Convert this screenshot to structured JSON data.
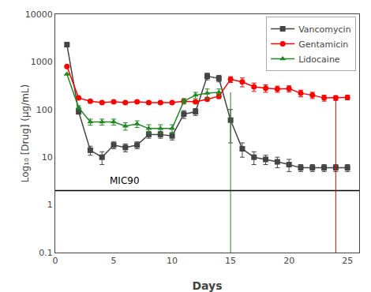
{
  "chart_data": {
    "type": "line",
    "xlabel": "Days",
    "ylabel": "Log₁₀ [Drug] (μg/mL)",
    "log": "y",
    "xlim": [
      0,
      26
    ],
    "ylim": [
      0.1,
      10000
    ],
    "xticks": [
      0,
      5,
      10,
      15,
      20,
      25
    ],
    "yticks": [
      0.1,
      1,
      10,
      100,
      1000,
      10000
    ],
    "grid": false,
    "legend": "upper right",
    "series": [
      {
        "name": "Vancomycin",
        "color": "#444444",
        "marker": "square",
        "x": [
          1,
          2,
          3,
          4,
          5,
          6,
          7,
          8,
          9,
          10,
          11,
          12,
          13,
          14,
          15,
          16,
          17,
          18,
          19,
          20,
          21,
          22,
          23,
          24,
          25
        ],
        "values": [
          2300,
          90,
          14,
          10,
          18,
          16,
          18,
          30,
          30,
          28,
          80,
          90,
          500,
          450,
          60,
          15,
          10,
          9,
          8,
          7,
          6,
          6,
          6,
          6,
          6
        ],
        "yerr_lo": [
          200,
          10,
          3,
          3,
          3,
          3,
          3,
          5,
          5,
          5,
          15,
          15,
          80,
          70,
          40,
          5,
          3,
          2,
          2,
          2,
          1,
          1,
          1,
          1,
          1
        ],
        "yerr_hi": [
          200,
          10,
          3,
          3,
          3,
          3,
          3,
          5,
          5,
          5,
          15,
          15,
          80,
          70,
          40,
          5,
          3,
          2,
          2,
          2,
          1,
          1,
          1,
          1,
          1
        ]
      },
      {
        "name": "Gentamicin",
        "color": "#ff0000",
        "marker": "circle",
        "x": [
          1,
          2,
          3,
          4,
          5,
          6,
          7,
          8,
          9,
          10,
          11,
          12,
          13,
          14,
          15,
          16,
          17,
          18,
          19,
          20,
          21,
          22,
          23,
          24,
          25
        ],
        "values": [
          800,
          175,
          150,
          140,
          145,
          140,
          145,
          140,
          140,
          140,
          150,
          145,
          165,
          190,
          430,
          380,
          300,
          280,
          270,
          275,
          220,
          200,
          175,
          175,
          180
        ],
        "yerr_lo": [
          0,
          10,
          10,
          8,
          8,
          8,
          8,
          8,
          8,
          8,
          8,
          8,
          10,
          20,
          60,
          80,
          60,
          50,
          40,
          40,
          35,
          30,
          25,
          20,
          20
        ],
        "yerr_hi": [
          0,
          10,
          10,
          8,
          8,
          8,
          8,
          8,
          8,
          8,
          8,
          8,
          10,
          20,
          60,
          80,
          60,
          50,
          40,
          40,
          35,
          30,
          25,
          20,
          20
        ]
      },
      {
        "name": "Lidocaine",
        "color": "#228822",
        "marker": "triangle-up",
        "x": [
          1,
          2,
          3,
          4,
          5,
          6,
          7,
          8,
          9,
          10,
          11,
          12,
          13,
          14
        ],
        "values": [
          550,
          110,
          55,
          55,
          55,
          45,
          50,
          40,
          40,
          40,
          150,
          200,
          220,
          230
        ],
        "yerr_lo": [
          0,
          10,
          8,
          8,
          8,
          8,
          8,
          8,
          8,
          8,
          20,
          30,
          50,
          40
        ],
        "yerr_hi": [
          0,
          10,
          8,
          8,
          8,
          8,
          8,
          8,
          8,
          8,
          20,
          30,
          50,
          40
        ]
      }
    ],
    "drop_lines": [
      {
        "series": "Lidocaine",
        "x": 15,
        "top": 230
      },
      {
        "series": "Gentamicin",
        "x": 24,
        "top": 175
      }
    ],
    "hlines": [
      {
        "y": 2.0,
        "label": "MIC90",
        "color": "#000000"
      }
    ]
  }
}
